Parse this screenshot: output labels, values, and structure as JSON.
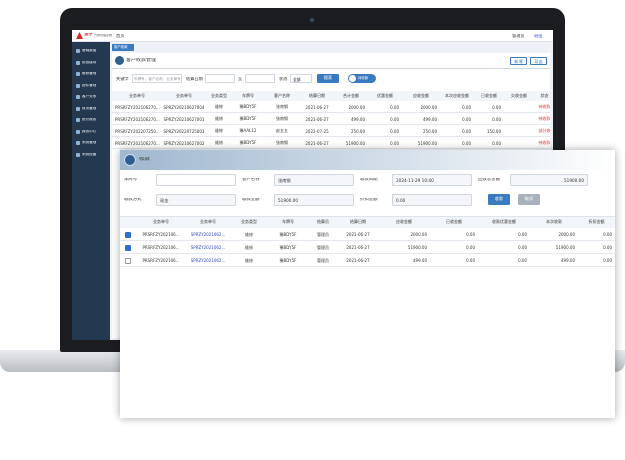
{
  "topbar": {
    "logo": "金亨",
    "logo_sub": "汽修管理系统",
    "home": "首页",
    "user": "管理员",
    "logout": "退出",
    "tab": "客户收款"
  },
  "sidebar": [
    "基础数据",
    "前台接待",
    "维修管理",
    "配件管理",
    "客户关系",
    "财务管理",
    "统计报表",
    "报表中心",
    "系统管理",
    "系统设置"
  ],
  "page": {
    "title": "客户收款管理",
    "buttons": [
      "新增",
      "导出"
    ],
    "search": {
      "keyword_label": "关键字",
      "keyword_placeholder": "车牌号、客户名称、业务单号",
      "date_label": "结算日期",
      "date_to": "至",
      "status_label": "状态",
      "status_value": "全部",
      "search_button": "搜索",
      "toggle_label": "待收款"
    },
    "table": {
      "headers": [
        "业务单号",
        "业务单号",
        "业务类型",
        "车牌号",
        "客户名称",
        "结算日期",
        "合计金额",
        "优惠金额",
        "应收金额",
        "本次应收金额",
        "已收金额",
        "欠收金额",
        "状态"
      ],
      "rows": [
        [
          "PRSRFZY202106270...",
          "SPRZY20210627004",
          "维修",
          "豫BDY5F",
          "张南钢",
          "2021-06-27",
          "2000.00",
          "0.00",
          "2000.00",
          "0.00",
          "0.00",
          "",
          "待收款"
        ],
        [
          "PRSRFZY202106270...",
          "SPRZY20210627001",
          "维修",
          "豫BDY5F",
          "张南钢",
          "2021-06-27",
          "499.00",
          "0.00",
          "499.00",
          "0.00",
          "0.00",
          "",
          "待收款"
        ],
        [
          "PRSRFZY202207250...",
          "SPRZY20220725003",
          "维修",
          "豫AAL12",
          "赵五五",
          "2022-07-25",
          "250.00",
          "0.00",
          "250.00",
          "0.00",
          "150.00",
          "",
          "部分收"
        ],
        [
          "PRSRFZY202106270...",
          "SPRZY20210627002",
          "维修",
          "豫BDY5F",
          "张南钢",
          "2021-06-27",
          "51900.00",
          "0.00",
          "51900.00",
          "0.00",
          "0.00",
          "",
          "待收款"
        ]
      ]
    }
  },
  "modal": {
    "title": "收款",
    "fields": [
      {
        "label": "车牌号"
      },
      {
        "label": "客户名称",
        "value": "张南钢"
      },
      {
        "label": "收款日期",
        "value": "2024-11-29 10:40"
      },
      {
        "label": "应收总金额",
        "value": "51900.00"
      },
      {
        "label": "收款方式",
        "value": "现金"
      },
      {
        "label": "收款金额",
        "value": "51900.00"
      },
      {
        "label": "折扣金额",
        "value": "0.00"
      }
    ],
    "buttons": [
      "收款",
      "取消"
    ],
    "table": {
      "headers": [
        "业务单号",
        "业务单号",
        "业务类型",
        "车牌号",
        "结算员",
        "结算日期",
        "应收金额",
        "已收金额",
        "收款优惠金额",
        "本次收款",
        "折扣金额"
      ],
      "rows": [
        {
          "checked": true,
          "cells": [
            "PRSRFZY202106...",
            "SPRZY2021062...",
            "维修",
            "豫BDY5F",
            "管理员",
            "2021-06-27",
            "2000.00",
            "0.00",
            "0.00",
            "2000.00",
            "0.00"
          ]
        },
        {
          "checked": true,
          "cells": [
            "PRSRFZY202106...",
            "SPRZY2021062...",
            "维修",
            "豫BDY5F",
            "管理员",
            "2021-06-27",
            "51900.00",
            "0.00",
            "0.00",
            "51900.00",
            "0.00"
          ]
        },
        {
          "checked": false,
          "cells": [
            "PRSRFZY202106...",
            "SPRZY2021062...",
            "维修",
            "豫BDY5F",
            "管理员",
            "2021-06-27",
            "499.00",
            "0.00",
            "0.00",
            "499.00",
            "0.00"
          ]
        }
      ]
    }
  }
}
